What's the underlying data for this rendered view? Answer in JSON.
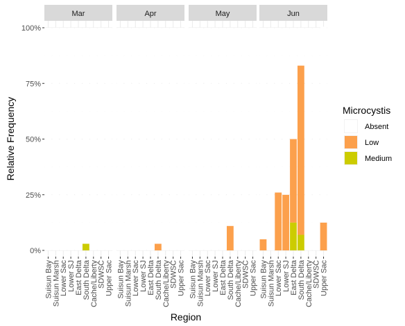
{
  "chart_data": {
    "type": "bar",
    "stacked": true,
    "facet_by": "month",
    "panels": [
      "Mar",
      "Apr",
      "May",
      "Jun"
    ],
    "categories": [
      "Suisun Bay",
      "Suisun Marsh",
      "Lower Sac",
      "Lower SJ",
      "East Delta",
      "South Delta",
      "Cache/Liberty",
      "SDWSC",
      "Upper Sac"
    ],
    "xlabel": "Region",
    "ylabel": "Relative Frequency",
    "ylim": [
      0,
      1
    ],
    "yticks": [
      0,
      0.25,
      0.5,
      0.75,
      1.0
    ],
    "yticklabels": [
      "0%",
      "25%",
      "50%",
      "75%",
      "100%"
    ],
    "legend": {
      "title": "Microcystis",
      "placement": "right"
    },
    "series": [
      {
        "name": "Absent",
        "color": "#ffffff",
        "values": {
          "Mar": [
            1,
            1,
            1,
            1,
            1,
            0.97,
            1,
            1,
            1
          ],
          "Apr": [
            1,
            1,
            1,
            1,
            1,
            0.97,
            1,
            1,
            1
          ],
          "May": [
            1,
            1,
            1,
            1,
            1,
            0.89,
            1,
            1,
            1
          ],
          "Jun": [
            0.95,
            1,
            0.74,
            0.75,
            0.5,
            0.17,
            1,
            1,
            0.88
          ]
        }
      },
      {
        "name": "Low",
        "color": "#fca04c",
        "values": {
          "Mar": [
            0,
            0,
            0,
            0,
            0,
            0,
            0,
            0,
            0
          ],
          "Apr": [
            0,
            0,
            0,
            0,
            0,
            0.03,
            0,
            0,
            0
          ],
          "May": [
            0,
            0,
            0,
            0,
            0,
            0.11,
            0,
            0,
            0
          ],
          "Jun": [
            0.05,
            0,
            0.26,
            0.25,
            0.375,
            0.76,
            0,
            0,
            0.125
          ]
        }
      },
      {
        "name": "Medium",
        "color": "#cccc00",
        "values": {
          "Mar": [
            0,
            0,
            0,
            0,
            0,
            0.03,
            0,
            0,
            0
          ],
          "Apr": [
            0,
            0,
            0,
            0,
            0,
            0,
            0,
            0,
            0
          ],
          "May": [
            0,
            0,
            0,
            0,
            0,
            0,
            0,
            0,
            0
          ],
          "Jun": [
            0,
            0,
            0,
            0,
            0.125,
            0.07,
            0,
            0,
            0
          ]
        }
      }
    ],
    "grid": true
  }
}
